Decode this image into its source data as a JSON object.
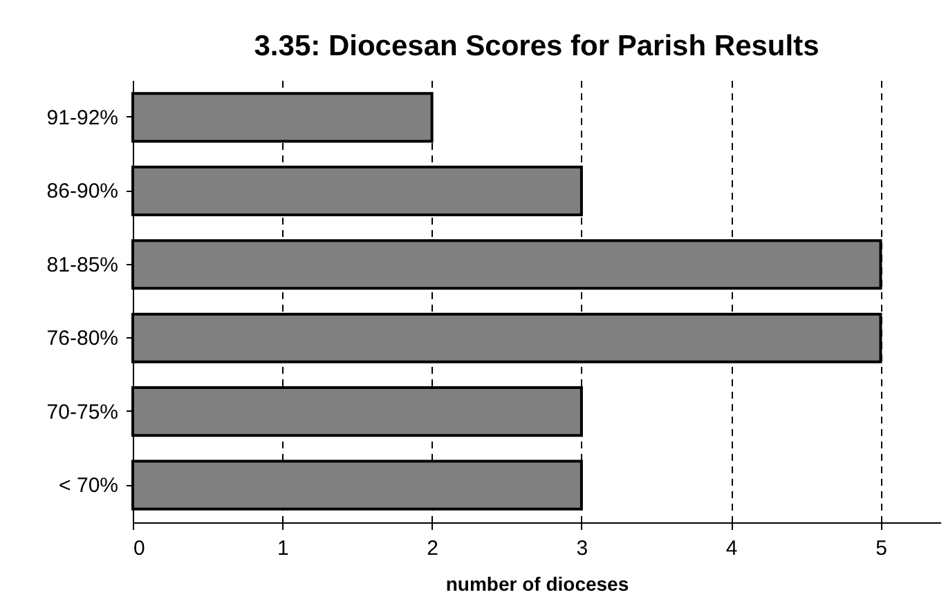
{
  "chart_data": {
    "type": "bar",
    "orientation": "horizontal",
    "title": "3.35: Diocesan Scores for Parish Results",
    "xlabel": "number of dioceses",
    "categories": [
      "91-92%",
      "86-90%",
      "81-85%",
      "76-80%",
      "70-75%",
      "< 70%"
    ],
    "values": [
      2,
      3,
      5,
      5,
      3,
      3
    ],
    "color": "#808080",
    "xlim": [
      0,
      5.4
    ],
    "xticks": [
      0,
      1,
      2,
      3,
      4,
      5
    ],
    "grid": "x"
  }
}
